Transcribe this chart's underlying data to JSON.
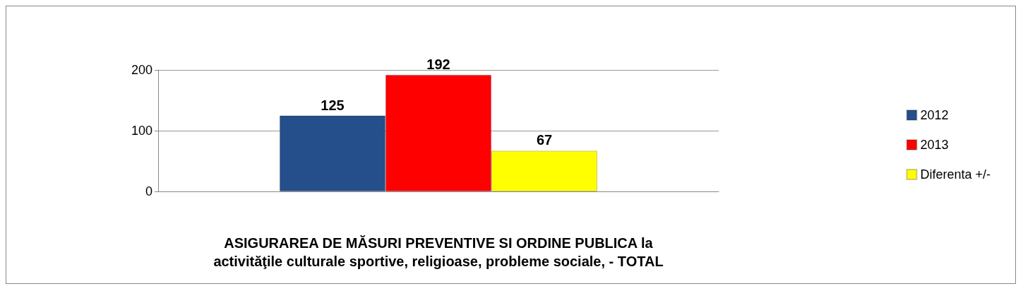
{
  "chart_data": {
    "type": "bar",
    "xlabel": "ASIGURAREA DE MĂSURI PREVENTIVE SI ORDINE PUBLICA la\nactivităţile culturale sportive, religioase, probleme sociale, - TOTAL",
    "categories": [
      null
    ],
    "series": [
      {
        "name": "2012",
        "color": "#254f8a",
        "values": [
          125
        ]
      },
      {
        "name": "2013",
        "color": "#ff0000",
        "values": [
          192
        ]
      },
      {
        "name": "Diferenta +/-",
        "color": "#ffff00",
        "values": [
          67
        ]
      }
    ],
    "ylim": [
      0,
      200
    ],
    "yticks": [
      0,
      100,
      200
    ],
    "grid": "y",
    "legend": "right",
    "data_labels": true
  }
}
